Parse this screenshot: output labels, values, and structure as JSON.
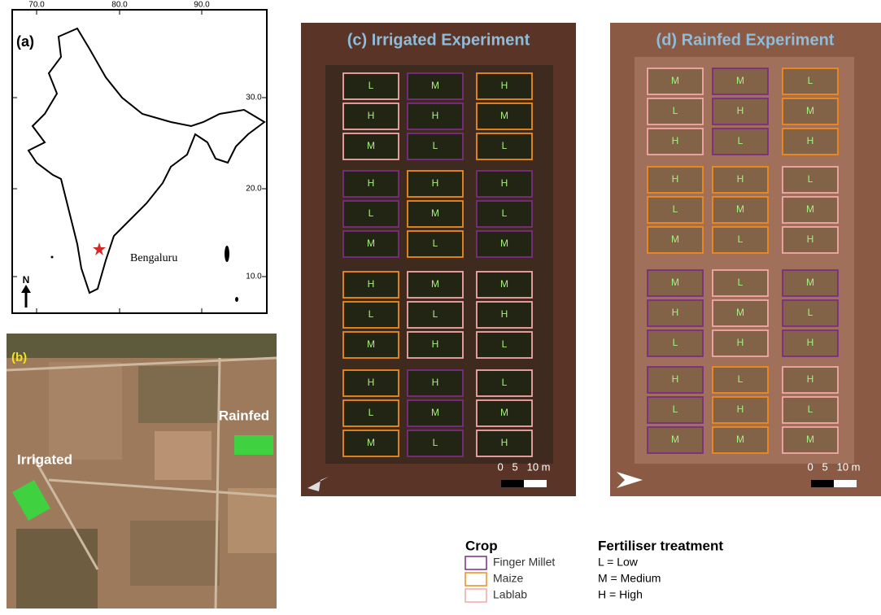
{
  "panel_a": {
    "label": "(a)",
    "lon_labels": [
      "70.0",
      "80.0",
      "90.0"
    ],
    "lat_labels": [
      "30.0",
      "20.0",
      "10.0"
    ],
    "city": "Bengaluru",
    "north": "N"
  },
  "panel_b": {
    "label": "(b)",
    "rainfed": "Rainfed",
    "irrigated": "Irrigated"
  },
  "panel_c": {
    "title": "(c) Irrigated Experiment",
    "scale": "0   5   10 m",
    "rows": [
      [
        {
          "label": "L",
          "color": "#f4a7a9"
        },
        {
          "label": "M",
          "color": "#7b2d82"
        },
        {
          "label": "H",
          "color": "#f08a1c"
        }
      ],
      [
        {
          "label": "H",
          "color": "#f4a7a9"
        },
        {
          "label": "H",
          "color": "#7b2d82"
        },
        {
          "label": "M",
          "color": "#f08a1c"
        }
      ],
      [
        {
          "label": "M",
          "color": "#f4a7a9"
        },
        {
          "label": "L",
          "color": "#7b2d82"
        },
        {
          "label": "L",
          "color": "#f08a1c"
        }
      ],
      [
        {
          "label": "H",
          "color": "#7b2d82"
        },
        {
          "label": "H",
          "color": "#f08a1c"
        },
        {
          "label": "H",
          "color": "#7b2d82"
        }
      ],
      [
        {
          "label": "L",
          "color": "#7b2d82"
        },
        {
          "label": "M",
          "color": "#f08a1c"
        },
        {
          "label": "L",
          "color": "#7b2d82"
        }
      ],
      [
        {
          "label": "M",
          "color": "#7b2d82"
        },
        {
          "label": "L",
          "color": "#f08a1c"
        },
        {
          "label": "M",
          "color": "#7b2d82"
        }
      ],
      [
        {
          "label": "H",
          "color": "#f08a1c"
        },
        {
          "label": "M",
          "color": "#f4a7a9"
        },
        {
          "label": "M",
          "color": "#f4a7a9"
        }
      ],
      [
        {
          "label": "L",
          "color": "#f08a1c"
        },
        {
          "label": "L",
          "color": "#f4a7a9"
        },
        {
          "label": "H",
          "color": "#f4a7a9"
        }
      ],
      [
        {
          "label": "M",
          "color": "#f08a1c"
        },
        {
          "label": "H",
          "color": "#f4a7a9"
        },
        {
          "label": "L",
          "color": "#f4a7a9"
        }
      ],
      [
        {
          "label": "H",
          "color": "#f08a1c"
        },
        {
          "label": "H",
          "color": "#7b2d82"
        },
        {
          "label": "L",
          "color": "#f4a7a9"
        }
      ],
      [
        {
          "label": "L",
          "color": "#f08a1c"
        },
        {
          "label": "M",
          "color": "#7b2d82"
        },
        {
          "label": "M",
          "color": "#f4a7a9"
        }
      ],
      [
        {
          "label": "M",
          "color": "#f08a1c"
        },
        {
          "label": "L",
          "color": "#7b2d82"
        },
        {
          "label": "H",
          "color": "#f4a7a9"
        }
      ]
    ]
  },
  "panel_d": {
    "title": "(d) Rainfed Experiment",
    "scale": "0   5   10 m",
    "rows": [
      [
        {
          "label": "M",
          "color": "#f4a7a9"
        },
        {
          "label": "M",
          "color": "#7b2d82"
        },
        {
          "label": "L",
          "color": "#f08a1c"
        }
      ],
      [
        {
          "label": "L",
          "color": "#f4a7a9"
        },
        {
          "label": "H",
          "color": "#7b2d82"
        },
        {
          "label": "M",
          "color": "#f08a1c"
        }
      ],
      [
        {
          "label": "H",
          "color": "#f4a7a9"
        },
        {
          "label": "L",
          "color": "#7b2d82"
        },
        {
          "label": "H",
          "color": "#f08a1c"
        }
      ],
      [
        {
          "label": "H",
          "color": "#f08a1c"
        },
        {
          "label": "H",
          "color": "#f08a1c"
        },
        {
          "label": "L",
          "color": "#f4a7a9"
        }
      ],
      [
        {
          "label": "L",
          "color": "#f08a1c"
        },
        {
          "label": "M",
          "color": "#f08a1c"
        },
        {
          "label": "M",
          "color": "#f4a7a9"
        }
      ],
      [
        {
          "label": "M",
          "color": "#f08a1c"
        },
        {
          "label": "L",
          "color": "#f08a1c"
        },
        {
          "label": "H",
          "color": "#f4a7a9"
        }
      ],
      [
        {
          "label": "M",
          "color": "#7b2d82"
        },
        {
          "label": "L",
          "color": "#f4a7a9"
        },
        {
          "label": "M",
          "color": "#7b2d82"
        }
      ],
      [
        {
          "label": "H",
          "color": "#7b2d82"
        },
        {
          "label": "M",
          "color": "#f4a7a9"
        },
        {
          "label": "L",
          "color": "#7b2d82"
        }
      ],
      [
        {
          "label": "L",
          "color": "#7b2d82"
        },
        {
          "label": "H",
          "color": "#f4a7a9"
        },
        {
          "label": "H",
          "color": "#7b2d82"
        }
      ],
      [
        {
          "label": "H",
          "color": "#7b2d82"
        },
        {
          "label": "L",
          "color": "#f08a1c"
        },
        {
          "label": "H",
          "color": "#f4a7a9"
        }
      ],
      [
        {
          "label": "L",
          "color": "#7b2d82"
        },
        {
          "label": "H",
          "color": "#f08a1c"
        },
        {
          "label": "L",
          "color": "#f4a7a9"
        }
      ],
      [
        {
          "label": "M",
          "color": "#7b2d82"
        },
        {
          "label": "M",
          "color": "#f08a1c"
        },
        {
          "label": "M",
          "color": "#f4a7a9"
        }
      ]
    ]
  },
  "legend": {
    "crop_title": "Crop",
    "crops": [
      {
        "name": "Finger Millet",
        "color": "#7b2d82"
      },
      {
        "name": "Maize",
        "color": "#f08a1c"
      },
      {
        "name": "Lablab",
        "color": "#f4a7a9"
      }
    ],
    "fert_title": "Fertiliser treatment",
    "treatments": [
      "L = Low",
      "M = Medium",
      "H = High"
    ]
  }
}
